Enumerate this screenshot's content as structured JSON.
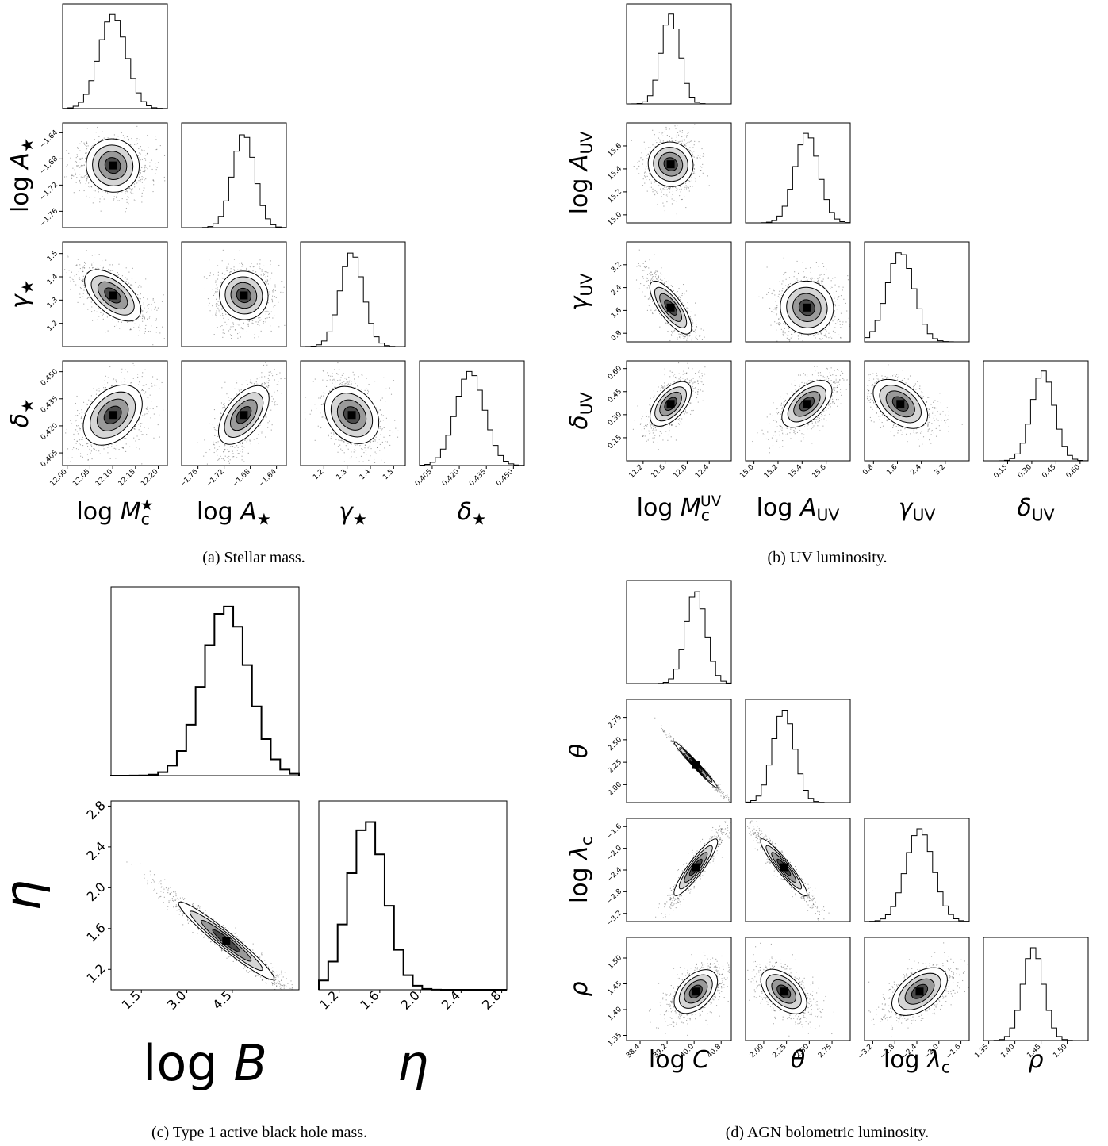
{
  "captions": {
    "a": "(a) Stellar mass.",
    "b": "(b) UV luminosity.",
    "c": "(c) Type 1 active black hole mass.",
    "d": "(d) AGN bolometric luminosity."
  },
  "chart_data": [
    {
      "type": "corner",
      "id": "a",
      "caption": "(a) Stellar mass.",
      "parameters": [
        {
          "label": "log M_c^★",
          "range": [
            11.99,
            12.22
          ],
          "ticks": [
            "12.00",
            "12.05",
            "12.10",
            "12.15",
            "12.20"
          ],
          "tick_values": [
            12.0,
            12.05,
            12.1,
            12.15,
            12.2
          ],
          "mean": 12.1,
          "sd": 0.03
        },
        {
          "label": "log A_★",
          "range": [
            -1.785,
            -1.625
          ],
          "ticks": [
            "-1.76",
            "-1.72",
            "-1.68",
            "-1.64"
          ],
          "tick_values": [
            -1.76,
            -1.72,
            -1.68,
            -1.64
          ],
          "mean": -1.69,
          "sd": 0.017
        },
        {
          "label": "γ_★",
          "range": [
            1.1,
            1.55
          ],
          "ticks": [
            "1.2",
            "1.3",
            "1.4",
            "1.5"
          ],
          "tick_values": [
            1.2,
            1.3,
            1.4,
            1.5
          ],
          "mean": 1.32,
          "sd": 0.05
        },
        {
          "label": "δ_★",
          "range": [
            0.398,
            0.456
          ],
          "ticks": [
            "0.405",
            "0.420",
            "0.435",
            "0.450"
          ],
          "tick_values": [
            0.405,
            0.42,
            0.435,
            0.45
          ],
          "mean": 0.426,
          "sd": 0.008
        }
      ],
      "correlations": [
        [
          1,
          0,
          0,
          0
        ],
        [
          0,
          1,
          0,
          0
        ],
        [
          -0.6,
          0,
          1,
          0
        ],
        [
          0.4,
          0.6,
          -0.3,
          1
        ]
      ]
    },
    {
      "type": "corner",
      "id": "b",
      "caption": "(b) UV luminosity.",
      "parameters": [
        {
          "label": "log M_c^UV",
          "range": [
            10.9,
            12.8
          ],
          "ticks": [
            "11.2",
            "11.6",
            "12.0",
            "12.4"
          ],
          "tick_values": [
            11.2,
            11.6,
            12.0,
            12.4
          ],
          "mean": 11.7,
          "sd": 0.17
        },
        {
          "label": "log A_UV",
          "range": [
            14.93,
            15.8
          ],
          "ticks": [
            "15.0",
            "15.2",
            "15.4",
            "15.6"
          ],
          "tick_values": [
            15.0,
            15.2,
            15.4,
            15.6
          ],
          "mean": 15.44,
          "sd": 0.1
        },
        {
          "label": "γ_UV",
          "range": [
            0.5,
            4.0
          ],
          "ticks": [
            "0.8",
            "1.6",
            "2.4",
            "3.2"
          ],
          "tick_values": [
            0.8,
            1.6,
            2.4,
            3.2
          ],
          "mean": 1.7,
          "sd": 0.45
        },
        {
          "label": "δ_UV",
          "range": [
            0.0,
            0.65
          ],
          "ticks": [
            "0.15",
            "0.30",
            "0.45",
            "0.60"
          ],
          "tick_values": [
            0.15,
            0.3,
            0.45,
            0.6
          ],
          "mean": 0.37,
          "sd": 0.07
        }
      ],
      "correlations": [
        [
          1,
          0,
          0,
          0
        ],
        [
          0,
          1,
          0,
          0
        ],
        [
          -0.8,
          0,
          1,
          0
        ],
        [
          0.6,
          0.6,
          -0.5,
          1
        ]
      ]
    },
    {
      "type": "corner",
      "id": "c",
      "caption": "(c) Type 1 active black hole mass.",
      "parameters": [
        {
          "label": "log B",
          "range": [
            0.5,
            6.7
          ],
          "ticks": [
            "1.5",
            "3.0",
            "4.5"
          ],
          "tick_values": [
            1.5,
            3.0,
            4.5
          ],
          "mean": 4.3,
          "sd": 0.75
        },
        {
          "label": "η",
          "range": [
            1.0,
            2.85
          ],
          "ticks": [
            "1.2",
            "1.6",
            "2.0",
            "2.4",
            "2.8"
          ],
          "tick_values": [
            1.2,
            1.6,
            2.0,
            2.4,
            2.8
          ],
          "mean": 1.48,
          "sd": 0.18
        }
      ],
      "correlations": [
        [
          1,
          0
        ],
        [
          -0.97,
          1
        ]
      ]
    },
    {
      "type": "corner",
      "id": "d",
      "caption": "(d) AGN bolometric luminosity.",
      "parameters": [
        {
          "label": "log C",
          "range": [
            38.0,
            41.1
          ],
          "ticks": [
            "38.4",
            "39.2",
            "40.0",
            "40.8"
          ],
          "tick_values": [
            38.4,
            39.2,
            40.0,
            40.8
          ],
          "mean": 40.05,
          "sd": 0.3
        },
        {
          "label": "θ",
          "range": [
            1.8,
            2.95
          ],
          "ticks": [
            "2.00",
            "2.25",
            "2.50",
            "2.75"
          ],
          "tick_values": [
            2.0,
            2.25,
            2.5,
            2.75
          ],
          "mean": 2.22,
          "sd": 0.12
        },
        {
          "label": "log λ_c",
          "range": [
            -3.35,
            -1.45
          ],
          "ticks": [
            "-3.2",
            "-2.8",
            "-2.4",
            "-2.0",
            "-1.6"
          ],
          "tick_values": [
            -3.2,
            -2.8,
            -2.4,
            -2.0,
            -1.6
          ],
          "mean": -2.35,
          "sd": 0.25
        },
        {
          "label": "ρ",
          "range": [
            1.34,
            1.54
          ],
          "ticks": [
            "1.35",
            "1.40",
            "1.45",
            "1.50"
          ],
          "tick_values": [
            1.35,
            1.4,
            1.45,
            1.5
          ],
          "mean": 1.435,
          "sd": 0.02
        }
      ],
      "correlations": [
        [
          1,
          0,
          0,
          0
        ],
        [
          -0.99,
          1,
          0,
          0
        ],
        [
          0.93,
          -0.95,
          1,
          0
        ],
        [
          0.5,
          -0.55,
          0.55,
          1
        ]
      ]
    }
  ]
}
